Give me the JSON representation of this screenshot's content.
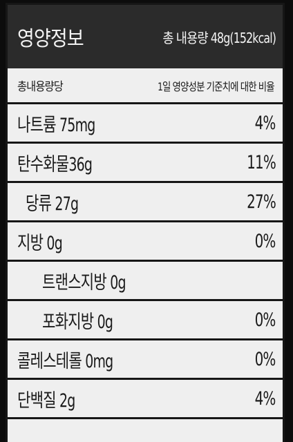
{
  "header": {
    "title": "영양정보",
    "serving": "총 내용량 48g(152kcal)"
  },
  "subheader": {
    "left": "총내용량당",
    "right": "1일 영양성분 기준치에 대한 비율"
  },
  "nutrients": [
    {
      "name": "나트륨 75mg",
      "pct": "4%"
    },
    {
      "name": "탄수화물36g",
      "pct": "11%"
    },
    {
      "name": "당류 27g",
      "pct": "27%"
    },
    {
      "name": "지방 0g",
      "pct": "0%"
    },
    {
      "name": "트랜스지방 0g",
      "pct": ""
    },
    {
      "name": "포화지방 0g",
      "pct": "0%"
    },
    {
      "name": "콜레스테롤 0mg",
      "pct": "0%"
    },
    {
      "name": "단백질 2g",
      "pct": "4%"
    }
  ],
  "colors": {
    "header_bg": "#2b2b2b",
    "label_bg": "#efefef",
    "rule": "#161616"
  }
}
